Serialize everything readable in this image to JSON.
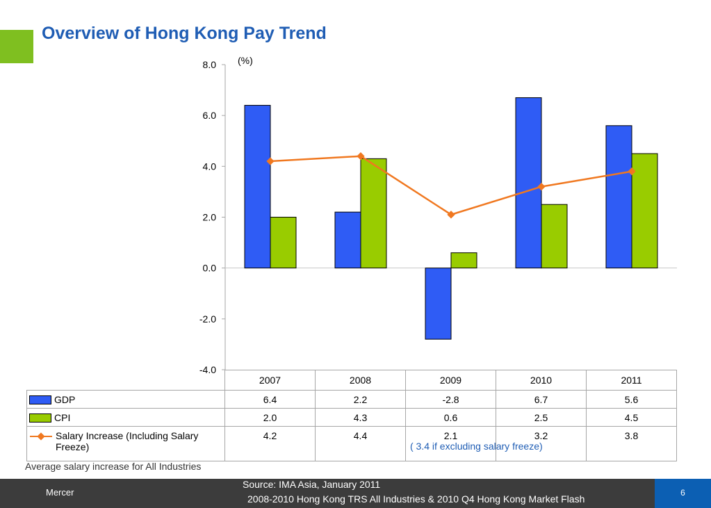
{
  "title": "Overview of Hong Kong Pay Trend",
  "unit_label": "(%)",
  "colors": {
    "gdp": "#2f5cf5",
    "cpi": "#99cc00",
    "salary": "#f07820",
    "title": "#1f5db4",
    "accent": "#7fbf20"
  },
  "chart_data": {
    "type": "bar",
    "categories": [
      "2007",
      "2008",
      "2009",
      "2010",
      "2011"
    ],
    "series": [
      {
        "name": "GDP",
        "type": "bar",
        "values": [
          6.4,
          2.2,
          -2.8,
          6.7,
          5.6
        ],
        "display": [
          "6.4",
          "2.2",
          "-2.8",
          "6.7",
          "5.6"
        ]
      },
      {
        "name": "CPI",
        "type": "bar",
        "values": [
          2.0,
          4.3,
          0.6,
          2.5,
          4.5
        ],
        "display": [
          "2.0",
          "4.3",
          "0.6",
          "2.5",
          "4.5"
        ]
      },
      {
        "name": "Salary Increase (Including Salary Freeze)",
        "type": "line",
        "values": [
          4.2,
          4.4,
          2.1,
          3.2,
          3.8
        ],
        "display": [
          "4.2",
          "4.4",
          "2.1",
          "3.2",
          "3.8"
        ]
      }
    ],
    "ylim": [
      -4.0,
      8.0
    ],
    "yticks": [
      "8.0",
      "6.0",
      "4.0",
      "2.0",
      "0.0",
      "-2.0",
      "-4.0"
    ],
    "legend": "data-table",
    "grid": false
  },
  "table": {
    "row_labels": {
      "gdp": "GDP",
      "cpi": "CPI",
      "salary_line1": "Salary Increase (Including Salary",
      "salary_line2": "Freeze)"
    }
  },
  "note": "( 3.4 if excluding salary freeze)",
  "caption": "Average salary increase for All Industries",
  "footer": {
    "brand": "Mercer",
    "source_line1": "Source: IMA Asia, January 2011",
    "source_line2": "2008-2010 Hong Kong TRS All Industries & 2010 Q4 Hong Kong Market Flash",
    "page_number": "6"
  }
}
